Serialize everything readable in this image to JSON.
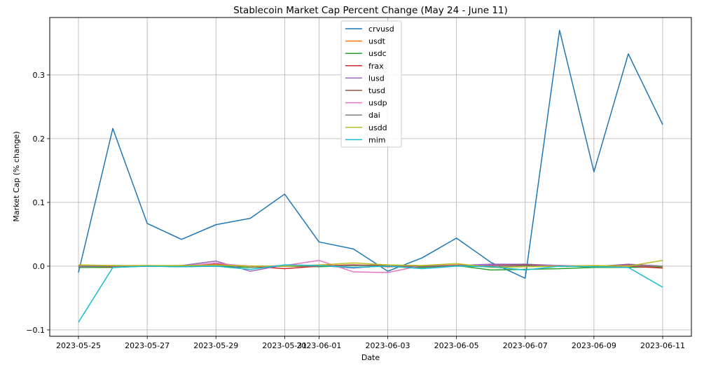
{
  "chart_data": {
    "type": "line",
    "title": "Stablecoin Market Cap Percent Change (May 24 - June 11)",
    "xlabel": "Date",
    "ylabel": "Market Cap (% change)",
    "x": [
      "2023-05-25",
      "2023-05-26",
      "2023-05-27",
      "2023-05-28",
      "2023-05-29",
      "2023-05-30",
      "2023-05-31",
      "2023-06-01",
      "2023-06-02",
      "2023-06-03",
      "2023-06-04",
      "2023-06-05",
      "2023-06-06",
      "2023-06-07",
      "2023-06-08",
      "2023-06-09",
      "2023-06-10",
      "2023-06-11"
    ],
    "x_ticks": [
      "2023-05-25",
      "2023-05-27",
      "2023-05-29",
      "2023-05-31",
      "2023-06-01",
      "2023-06-03",
      "2023-06-05",
      "2023-06-07",
      "2023-06-09",
      "2023-06-11"
    ],
    "x_tick_labels": [
      "2023-05-25",
      "2023-05-27",
      "2023-05-29",
      "2023-05-31",
      "2023-06-01",
      "2023-06-03",
      "2023-06-05",
      "2023-06-07",
      "2023-06-09",
      "2023-06-11"
    ],
    "xlim": [
      "2023-05-24",
      "2023-06-11"
    ],
    "ylim": [
      -0.11,
      0.39
    ],
    "y_ticks": [
      -0.1,
      0.0,
      0.1,
      0.2,
      0.3
    ],
    "y_tick_labels": [
      "−0.1",
      "0.0",
      "0.1",
      "0.2",
      "0.3"
    ],
    "grid": true,
    "legend_position": "top-center",
    "series": [
      {
        "name": "crvusd",
        "color": "#1f77b4",
        "values": [
          -0.01,
          0.216,
          0.067,
          0.042,
          0.065,
          0.075,
          0.113,
          0.038,
          0.027,
          -0.008,
          0.013,
          0.044,
          0.006,
          -0.019,
          0.37,
          0.148,
          0.333,
          0.222
        ]
      },
      {
        "name": "usdt",
        "color": "#ff7f0e",
        "values": [
          0.001,
          0.0,
          0.001,
          0.0,
          0.001,
          0.0,
          0.0,
          0.001,
          0.002,
          0.001,
          0.0,
          0.002,
          0.001,
          0.0,
          0.001,
          0.0,
          0.001,
          0.0
        ]
      },
      {
        "name": "usdc",
        "color": "#2ca02c",
        "values": [
          -0.002,
          -0.002,
          0.0,
          -0.001,
          0.0,
          -0.002,
          0.0,
          -0.001,
          0.001,
          0.0,
          -0.002,
          0.001,
          -0.006,
          -0.005,
          -0.004,
          -0.002,
          -0.002,
          -0.001
        ]
      },
      {
        "name": "frax",
        "color": "#d62728",
        "values": [
          0.0,
          -0.001,
          0.0,
          0.0,
          0.003,
          0.0,
          -0.004,
          0.0,
          0.002,
          -0.001,
          0.0,
          0.001,
          0.002,
          0.003,
          0.0,
          -0.001,
          0.0,
          -0.003
        ]
      },
      {
        "name": "lusd",
        "color": "#9467bd",
        "values": [
          -0.001,
          0.0,
          0.0,
          0.001,
          0.008,
          -0.008,
          0.002,
          0.001,
          -0.003,
          0.001,
          -0.001,
          0.001,
          0.003,
          0.003,
          0.001,
          -0.001,
          0.003,
          0.0
        ]
      },
      {
        "name": "tusd",
        "color": "#8c564b",
        "values": [
          0.0,
          0.0,
          0.0,
          0.0,
          0.002,
          0.0,
          0.0,
          0.0,
          0.001,
          0.002,
          -0.001,
          0.001,
          0.001,
          0.002,
          0.0,
          0.0,
          0.002,
          0.0
        ]
      },
      {
        "name": "usdp",
        "color": "#e377c2",
        "values": [
          0.0,
          0.001,
          0.0,
          0.0,
          0.005,
          -0.001,
          0.001,
          0.009,
          -0.009,
          -0.01,
          0.001,
          0.001,
          0.001,
          0.0,
          0.001,
          0.0,
          0.001,
          0.0
        ]
      },
      {
        "name": "dai",
        "color": "#7f7f7f",
        "values": [
          0.0,
          0.0,
          0.0,
          0.0,
          0.001,
          0.0,
          0.0,
          0.0,
          0.001,
          0.0,
          0.0,
          0.001,
          0.0,
          0.0,
          0.0,
          0.0,
          0.0,
          0.0
        ]
      },
      {
        "name": "usdd",
        "color": "#bcbd22",
        "values": [
          0.002,
          0.001,
          0.001,
          0.001,
          0.002,
          0.0,
          0.0,
          0.002,
          0.005,
          0.002,
          0.001,
          0.004,
          -0.002,
          -0.001,
          0.0,
          0.001,
          0.0,
          0.009
        ]
      },
      {
        "name": "mim",
        "color": "#17becf",
        "values": [
          -0.088,
          -0.002,
          0.0,
          -0.001,
          0.0,
          -0.005,
          0.002,
          0.001,
          -0.002,
          0.0,
          -0.004,
          0.0,
          -0.001,
          -0.006,
          0.0,
          -0.001,
          -0.002,
          -0.033
        ]
      }
    ]
  }
}
